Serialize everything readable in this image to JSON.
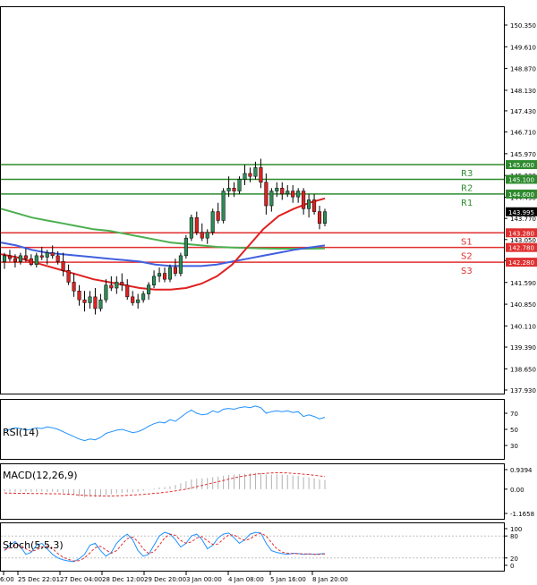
{
  "chart_data": {
    "type": "candlestick",
    "colors": {
      "bull": "#2e8b57",
      "bear": "#dd2222",
      "ma_fast": "#e02020",
      "ma_mid": "#4060e0",
      "ma_slow": "#4caf50",
      "level_resistance": "#2e8b2e",
      "level_support": "#e03030",
      "indicator": "#1e90ff",
      "signal": "#e03030",
      "histogram": "#b0b0b0",
      "axis": "#000000"
    },
    "main": {
      "ylim": [
        137.93,
        150.35
      ],
      "y_ticks": [
        "150.350",
        "149.610",
        "148.870",
        "148.130",
        "147.430",
        "146.710",
        "145.970",
        "145.230",
        "144.490",
        "143.770",
        "143.050",
        "142.330",
        "141.590",
        "140.850",
        "140.110",
        "139.390",
        "138.650",
        "137.930"
      ],
      "current_price": "143.995",
      "candles": [
        [
          142.3,
          142.6,
          142.05,
          142.5
        ],
        [
          142.5,
          142.7,
          142.3,
          142.4
        ],
        [
          142.4,
          142.55,
          142.1,
          142.3
        ],
        [
          142.3,
          142.6,
          142.2,
          142.5
        ],
        [
          142.5,
          142.75,
          142.3,
          142.4
        ],
        [
          142.4,
          142.55,
          142.15,
          142.2
        ],
        [
          142.2,
          142.6,
          142.1,
          142.5
        ],
        [
          142.5,
          142.8,
          142.35,
          142.45
        ],
        [
          142.45,
          142.7,
          142.2,
          142.6
        ],
        [
          142.6,
          142.85,
          142.4,
          142.5
        ],
        [
          142.5,
          142.65,
          142.2,
          142.3
        ],
        [
          142.3,
          142.6,
          141.8,
          142.0
        ],
        [
          142.0,
          142.2,
          141.5,
          141.6
        ],
        [
          141.6,
          141.9,
          141.1,
          141.3
        ],
        [
          141.3,
          141.5,
          140.8,
          141.0
        ],
        [
          141.0,
          141.3,
          140.6,
          140.9
        ],
        [
          140.9,
          141.3,
          140.7,
          141.1
        ],
        [
          141.1,
          141.4,
          140.5,
          140.7
        ],
        [
          140.7,
          141.2,
          140.6,
          141.0
        ],
        [
          141.0,
          141.7,
          140.9,
          141.5
        ],
        [
          141.5,
          141.8,
          141.3,
          141.4
        ],
        [
          141.4,
          141.8,
          141.2,
          141.6
        ],
        [
          141.6,
          141.9,
          141.3,
          141.5
        ],
        [
          141.5,
          141.7,
          141.0,
          141.1
        ],
        [
          141.1,
          141.3,
          140.8,
          140.9
        ],
        [
          140.9,
          141.2,
          140.7,
          141.0
        ],
        [
          141.0,
          141.3,
          140.9,
          141.2
        ],
        [
          141.2,
          141.6,
          141.0,
          141.5
        ],
        [
          141.5,
          142.0,
          141.4,
          141.8
        ],
        [
          141.8,
          142.1,
          141.6,
          141.9
        ],
        [
          141.9,
          142.1,
          141.6,
          141.7
        ],
        [
          141.7,
          142.2,
          141.6,
          142.1
        ],
        [
          142.1,
          142.4,
          141.8,
          141.9
        ],
        [
          141.9,
          142.6,
          141.8,
          142.5
        ],
        [
          142.5,
          143.2,
          142.4,
          143.1
        ],
        [
          143.1,
          143.9,
          143.0,
          143.8
        ],
        [
          143.8,
          144.0,
          143.2,
          143.3
        ],
        [
          143.3,
          143.6,
          143.0,
          143.1
        ],
        [
          143.1,
          143.4,
          142.9,
          143.3
        ],
        [
          143.3,
          144.1,
          143.2,
          144.0
        ],
        [
          144.0,
          144.3,
          143.6,
          143.7
        ],
        [
          143.7,
          144.8,
          143.6,
          144.7
        ],
        [
          144.7,
          145.2,
          144.5,
          144.8
        ],
        [
          144.8,
          145.0,
          144.5,
          144.7
        ],
        [
          144.7,
          145.2,
          144.6,
          145.1
        ],
        [
          145.1,
          145.6,
          144.9,
          145.3
        ],
        [
          145.3,
          145.5,
          145.0,
          145.2
        ],
        [
          145.2,
          145.7,
          145.1,
          145.5
        ],
        [
          145.5,
          145.8,
          144.8,
          145.0
        ],
        [
          145.0,
          145.3,
          143.9,
          144.2
        ],
        [
          144.2,
          144.8,
          144.0,
          144.7
        ],
        [
          144.7,
          145.0,
          144.5,
          144.8
        ],
        [
          144.8,
          145.0,
          144.4,
          144.6
        ],
        [
          144.6,
          144.9,
          144.5,
          144.7
        ],
        [
          144.7,
          144.9,
          144.3,
          144.5
        ],
        [
          144.5,
          144.8,
          144.3,
          144.7
        ],
        [
          144.7,
          144.8,
          143.9,
          144.1
        ],
        [
          144.1,
          144.6,
          143.8,
          144.4
        ],
        [
          144.4,
          144.6,
          143.9,
          144.0
        ],
        [
          144.0,
          144.2,
          143.4,
          143.6
        ],
        [
          143.6,
          144.1,
          143.5,
          143.995
        ]
      ],
      "ma_fast": [
        142.55,
        142.45,
        142.3,
        142.15,
        142.0,
        141.85,
        141.7,
        141.6,
        141.5,
        141.4,
        141.35,
        141.35,
        141.4,
        141.55,
        141.8,
        142.2,
        142.8,
        143.4,
        143.85,
        144.1,
        144.3,
        144.45
      ],
      "ma_mid": [
        142.95,
        142.85,
        142.7,
        142.6,
        142.55,
        142.5,
        142.45,
        142.4,
        142.35,
        142.3,
        142.2,
        142.15,
        142.15,
        142.15,
        142.2,
        142.3,
        142.4,
        142.5,
        142.6,
        142.7,
        142.78,
        142.85
      ],
      "ma_slow": [
        144.1,
        143.95,
        143.8,
        143.7,
        143.6,
        143.5,
        143.4,
        143.35,
        143.25,
        143.15,
        143.05,
        142.95,
        142.9,
        142.85,
        142.8,
        142.78,
        142.76,
        142.75,
        142.74,
        142.74,
        142.74,
        142.75
      ],
      "levels": [
        {
          "name": "R3",
          "value": "145.600",
          "kind": "resistance"
        },
        {
          "name": "R2",
          "value": "145.100",
          "kind": "resistance"
        },
        {
          "name": "R1",
          "value": "144.600",
          "kind": "resistance"
        },
        {
          "name": "S1",
          "value": "143.280",
          "kind": "support"
        },
        {
          "name": "S2",
          "value": "142.780",
          "kind": "support"
        },
        {
          "name": "S3",
          "value": "142.280",
          "kind": "support"
        }
      ]
    },
    "rsi": {
      "label": "RSI(14)",
      "ylim": [
        20,
        80
      ],
      "ticks": [
        "70",
        "50",
        "30"
      ],
      "values": [
        48,
        50,
        52,
        51,
        49,
        50,
        52,
        51,
        53,
        52,
        50,
        47,
        44,
        41,
        38,
        36,
        38,
        37,
        40,
        45,
        47,
        49,
        50,
        48,
        46,
        47,
        50,
        54,
        57,
        59,
        58,
        62,
        60,
        65,
        70,
        74,
        70,
        68,
        69,
        73,
        71,
        75,
        76,
        75,
        77,
        78,
        77,
        79,
        77,
        70,
        72,
        73,
        72,
        73,
        71,
        72,
        66,
        68,
        66,
        63,
        65
      ]
    },
    "macd": {
      "label": "MACD(12,26,9)",
      "ylim": [
        -1.1658,
        0.9394
      ],
      "ticks": [
        "0.9394",
        "0.00",
        "-1.1658"
      ],
      "signal": [
        -0.18,
        -0.19,
        -0.2,
        -0.2,
        -0.2,
        -0.21,
        -0.21,
        -0.21,
        -0.22,
        -0.22,
        -0.22,
        -0.23,
        -0.24,
        -0.26,
        -0.28,
        -0.3,
        -0.31,
        -0.32,
        -0.33,
        -0.33,
        -0.33,
        -0.32,
        -0.31,
        -0.3,
        -0.28,
        -0.27,
        -0.25,
        -0.23,
        -0.2,
        -0.18,
        -0.15,
        -0.12,
        -0.08,
        -0.04,
        0.0,
        0.06,
        0.12,
        0.18,
        0.24,
        0.3,
        0.36,
        0.42,
        0.48,
        0.54,
        0.6,
        0.64,
        0.68,
        0.72,
        0.74,
        0.76,
        0.78,
        0.79,
        0.79,
        0.78,
        0.76,
        0.74,
        0.72,
        0.7,
        0.67,
        0.64,
        0.6
      ],
      "histogram": [
        -0.1,
        -0.12,
        -0.14,
        -0.12,
        -0.11,
        -0.13,
        -0.12,
        -0.11,
        -0.13,
        -0.12,
        -0.14,
        -0.18,
        -0.22,
        -0.28,
        -0.34,
        -0.38,
        -0.36,
        -0.37,
        -0.33,
        -0.28,
        -0.24,
        -0.2,
        -0.18,
        -0.16,
        -0.15,
        -0.12,
        -0.08,
        -0.02,
        0.04,
        0.08,
        0.1,
        0.14,
        0.2,
        0.28,
        0.38,
        0.46,
        0.5,
        0.52,
        0.54,
        0.58,
        0.6,
        0.64,
        0.68,
        0.7,
        0.72,
        0.74,
        0.76,
        0.78,
        0.76,
        0.7,
        0.7,
        0.72,
        0.7,
        0.68,
        0.66,
        0.65,
        0.58,
        0.56,
        0.52,
        0.46,
        0.44
      ]
    },
    "stoch": {
      "label": "Stoch(5,5,3)",
      "ylim": [
        0,
        100
      ],
      "ticks": [
        "100",
        "80",
        "20",
        "0"
      ],
      "k": [
        40,
        55,
        65,
        50,
        30,
        35,
        55,
        60,
        45,
        30,
        20,
        15,
        12,
        10,
        18,
        30,
        55,
        60,
        40,
        25,
        35,
        60,
        75,
        85,
        70,
        40,
        25,
        30,
        55,
        80,
        90,
        85,
        70,
        50,
        60,
        80,
        85,
        70,
        45,
        55,
        75,
        85,
        88,
        75,
        60,
        70,
        85,
        90,
        88,
        60,
        40,
        35,
        32,
        30,
        33,
        32,
        30,
        31,
        30,
        31,
        32
      ],
      "d": [
        42,
        48,
        55,
        55,
        45,
        38,
        42,
        50,
        52,
        45,
        32,
        22,
        16,
        12,
        13,
        20,
        34,
        48,
        52,
        42,
        33,
        40,
        57,
        73,
        77,
        65,
        45,
        32,
        37,
        55,
        75,
        85,
        82,
        68,
        60,
        64,
        75,
        78,
        67,
        57,
        58,
        72,
        83,
        83,
        74,
        68,
        72,
        82,
        88,
        80,
        62,
        45,
        36,
        33,
        32,
        32,
        31,
        31,
        30,
        30,
        31
      ]
    },
    "x_labels": [
      "6:00",
      "25 Dec 22:01",
      "27 Dec 04:00",
      "28 Dec 12:00",
      "29 Dec 20:00",
      "3 Jan 00:00",
      "4 Jan 08:00",
      "5 Jan 16:00",
      "8 Jan 20:00"
    ]
  }
}
